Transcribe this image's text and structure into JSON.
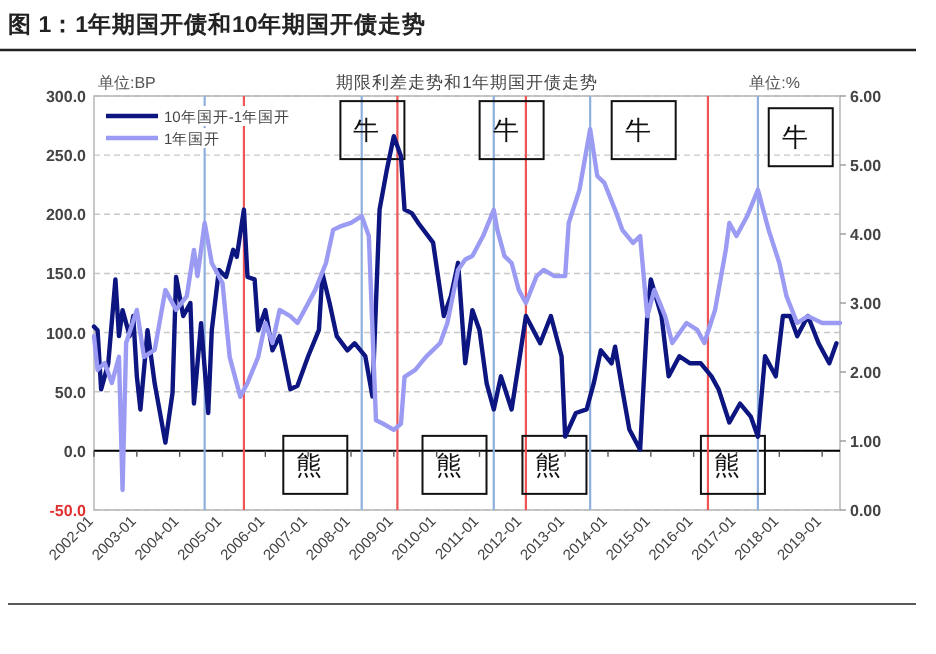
{
  "chart_data": {
    "type": "line",
    "title": "图 1：1年期国开债和10年期国开债走势",
    "subtitle": "期限利差走势和1年期国开债走势",
    "ylabel": "单位:BP",
    "y2label": "单位:%",
    "xlim": [
      "2002-01",
      "2019-06"
    ],
    "xticks": [
      "2002-01",
      "2003-01",
      "2004-01",
      "2005-01",
      "2006-01",
      "2007-01",
      "2008-01",
      "2009-01",
      "2010-01",
      "2011-01",
      "2012-01",
      "2013-01",
      "2014-01",
      "2015-01",
      "2016-01",
      "2017-01",
      "2018-01",
      "2019-01"
    ],
    "ylim": [
      -50,
      300
    ],
    "yticks": [
      {
        "value": -50,
        "label": "-50.0"
      },
      {
        "value": 0,
        "label": "0.0"
      },
      {
        "value": 50,
        "label": "50.0"
      },
      {
        "value": 100,
        "label": "100.0"
      },
      {
        "value": 150,
        "label": "150.0"
      },
      {
        "value": 200,
        "label": "200.0"
      },
      {
        "value": 250,
        "label": "250.0"
      },
      {
        "value": 300,
        "label": "300.0"
      }
    ],
    "y2lim": [
      0,
      6
    ],
    "y2ticks": [
      {
        "value": 0,
        "label": "0.00"
      },
      {
        "value": 1,
        "label": "1.00"
      },
      {
        "value": 2,
        "label": "2.00"
      },
      {
        "value": 3,
        "label": "3.00"
      },
      {
        "value": 4,
        "label": "4.00"
      },
      {
        "value": 5,
        "label": "5.00"
      },
      {
        "value": 6,
        "label": "6.00"
      }
    ],
    "grid": "y",
    "legend": "top left",
    "line_style": "solid",
    "series": [
      {
        "name": "10年国开-1年国开",
        "color": "#0d1580",
        "x": [
          "2002-01",
          "2002-02",
          "2002-03",
          "2002-05",
          "2002-07",
          "2002-08",
          "2002-09",
          "2002-11",
          "2002-12",
          "2003-01",
          "2003-02",
          "2003-04",
          "2003-06",
          "2003-09",
          "2003-11",
          "2003-12",
          "2004-02",
          "2004-04",
          "2004-05",
          "2004-07",
          "2004-09",
          "2004-10",
          "2004-12",
          "2005-02",
          "2005-04",
          "2005-05",
          "2005-07",
          "2005-08",
          "2005-10",
          "2005-11",
          "2006-01",
          "2006-03",
          "2006-05",
          "2006-08",
          "2006-10",
          "2007-01",
          "2007-04",
          "2007-05",
          "2007-07",
          "2007-09",
          "2007-12",
          "2008-02",
          "2008-05",
          "2008-07",
          "2008-09",
          "2008-11",
          "2009-01",
          "2009-03",
          "2009-04",
          "2009-06",
          "2009-08",
          "2009-12",
          "2010-03",
          "2010-05",
          "2010-07",
          "2010-09",
          "2010-11",
          "2011-01",
          "2011-03",
          "2011-05",
          "2011-07",
          "2011-10",
          "2011-12",
          "2012-02",
          "2012-06",
          "2012-09",
          "2012-12",
          "2013-01",
          "2013-04",
          "2013-07",
          "2013-09",
          "2013-11",
          "2014-02",
          "2014-03",
          "2014-05",
          "2014-07",
          "2014-10",
          "2014-12",
          "2015-01",
          "2015-04",
          "2015-06",
          "2015-09",
          "2015-12",
          "2016-03",
          "2016-06",
          "2016-08",
          "2016-11",
          "2017-02",
          "2017-05",
          "2017-07",
          "2017-09",
          "2017-12",
          "2018-02",
          "2018-04",
          "2018-06",
          "2018-09",
          "2018-12",
          "2019-03",
          "2019-05"
        ],
        "values": [
          105,
          102,
          52,
          74,
          145,
          97,
          119,
          97,
          114,
          63,
          35,
          102,
          57,
          7,
          49,
          147,
          114,
          125,
          40,
          108,
          32,
          102,
          153,
          147,
          170,
          164,
          204,
          147,
          145,
          102,
          119,
          85,
          97,
          52,
          55,
          80,
          102,
          150,
          125,
          97,
          85,
          91,
          80,
          46,
          204,
          237,
          266,
          249,
          204,
          201,
          192,
          176,
          114,
          131,
          159,
          74,
          119,
          102,
          57,
          35,
          63,
          35,
          74,
          114,
          91,
          114,
          80,
          12,
          32,
          35,
          57,
          85,
          74,
          88,
          52,
          18,
          1,
          114,
          145,
          114,
          63,
          80,
          74,
          74,
          63,
          52,
          24,
          40,
          29,
          12,
          80,
          63,
          114,
          114,
          97,
          114,
          91,
          74,
          91
        ]
      },
      {
        "name": "1年国开",
        "color": "#9b9bf3",
        "axis": "y2",
        "x": [
          "2002-01",
          "2002-02",
          "2002-04",
          "2002-06",
          "2002-08",
          "2002-09",
          "2002-10",
          "2003-01",
          "2003-03",
          "2003-06",
          "2003-09",
          "2003-12",
          "2004-03",
          "2004-05",
          "2004-06",
          "2004-08",
          "2004-10",
          "2005-01",
          "2005-03",
          "2005-06",
          "2005-08",
          "2005-11",
          "2006-01",
          "2006-03",
          "2006-05",
          "2006-08",
          "2006-10",
          "2006-12",
          "2007-03",
          "2007-06",
          "2007-08",
          "2007-10",
          "2008-01",
          "2008-04",
          "2008-06",
          "2008-08",
          "2008-10",
          "2009-01",
          "2009-03",
          "2009-04",
          "2009-07",
          "2009-10",
          "2010-02",
          "2010-04",
          "2010-07",
          "2010-09",
          "2010-11",
          "2011-02",
          "2011-05",
          "2011-06",
          "2011-08",
          "2011-10",
          "2011-12",
          "2012-02",
          "2012-05",
          "2012-07",
          "2012-10",
          "2013-01",
          "2013-02",
          "2013-05",
          "2013-08",
          "2013-10",
          "2013-12",
          "2014-03",
          "2014-05",
          "2014-08",
          "2014-10",
          "2014-12",
          "2015-02",
          "2015-05",
          "2015-07",
          "2015-11",
          "2016-02",
          "2016-04",
          "2016-07",
          "2016-10",
          "2016-11",
          "2017-01",
          "2017-04",
          "2017-07",
          "2017-10",
          "2018-01",
          "2018-03",
          "2018-06",
          "2018-09",
          "2019-01",
          "2019-06"
        ],
        "values": [
          2.52,
          2.03,
          2.13,
          1.84,
          2.22,
          0.29,
          2.42,
          2.9,
          2.22,
          2.32,
          3.19,
          2.9,
          3.1,
          3.77,
          3.39,
          4.16,
          3.58,
          3.29,
          2.22,
          1.64,
          1.84,
          2.22,
          2.71,
          2.42,
          2.9,
          2.81,
          2.71,
          2.9,
          3.19,
          3.58,
          4.06,
          4.11,
          4.16,
          4.26,
          3.97,
          1.3,
          1.25,
          1.16,
          1.25,
          1.93,
          2.03,
          2.22,
          2.42,
          2.71,
          3.48,
          3.63,
          3.68,
          3.97,
          4.35,
          4.06,
          3.68,
          3.58,
          3.19,
          3.0,
          3.39,
          3.48,
          3.39,
          3.39,
          4.16,
          4.64,
          5.52,
          4.84,
          4.74,
          4.35,
          4.06,
          3.87,
          3.97,
          2.81,
          3.19,
          2.81,
          2.42,
          2.71,
          2.61,
          2.42,
          2.9,
          3.77,
          4.16,
          3.97,
          4.26,
          4.64,
          4.06,
          3.58,
          3.1,
          2.71,
          2.81,
          2.71,
          2.71
        ]
      }
    ],
    "ref_lines": [
      {
        "axis": "y",
        "value": 0,
        "color": "#000000"
      },
      {
        "axis": "x",
        "value": "2004-08",
        "color": "#8fb0dd"
      },
      {
        "axis": "x",
        "value": "2005-07",
        "color": "#ee5555"
      },
      {
        "axis": "x",
        "value": "2008-04",
        "color": "#8fb0dd"
      },
      {
        "axis": "x",
        "value": "2009-02",
        "color": "#ee5555"
      },
      {
        "axis": "x",
        "value": "2011-05",
        "color": "#8fb0dd"
      },
      {
        "axis": "x",
        "value": "2012-02",
        "color": "#ee5555"
      },
      {
        "axis": "x",
        "value": "2013-08",
        "color": "#8fb0dd"
      },
      {
        "axis": "x",
        "value": "2016-05",
        "color": "#ee5555"
      },
      {
        "axis": "x",
        "value": "2017-07",
        "color": "#8fb0dd"
      }
    ],
    "annotations": [
      {
        "text": "牛",
        "x": "2008-07",
        "y": 272
      },
      {
        "text": "牛",
        "x": "2011-10",
        "y": 272
      },
      {
        "text": "牛",
        "x": "2014-11",
        "y": 272
      },
      {
        "text": "牛",
        "x": "2018-07",
        "y": 266
      },
      {
        "text": "熊",
        "x": "2007-03",
        "y": -11
      },
      {
        "text": "熊",
        "x": "2010-06",
        "y": -11
      },
      {
        "text": "熊",
        "x": "2012-10",
        "y": -11
      },
      {
        "text": "熊",
        "x": "2016-12",
        "y": -11
      }
    ]
  }
}
